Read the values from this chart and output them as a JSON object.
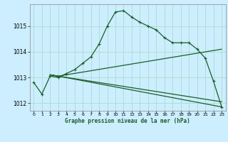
{
  "title": "Graphe pression niveau de la mer (hPa)",
  "background_color": "#cceeff",
  "grid_color": "#aaddcc",
  "line_color": "#1a5c2a",
  "xlim": [
    -0.5,
    23.5
  ],
  "ylim": [
    1011.7,
    1015.85
  ],
  "yticks": [
    1012,
    1013,
    1014,
    1015
  ],
  "xticks": [
    0,
    1,
    2,
    3,
    4,
    5,
    6,
    7,
    8,
    9,
    10,
    11,
    12,
    13,
    14,
    15,
    16,
    17,
    18,
    19,
    20,
    21,
    22,
    23
  ],
  "series1_x": [
    0,
    1,
    2,
    3,
    4,
    5,
    6,
    7,
    8,
    9,
    10,
    11,
    12,
    13,
    14,
    15,
    16,
    17,
    18,
    19,
    20,
    21,
    22,
    23
  ],
  "series1_y": [
    1012.8,
    1012.35,
    1013.05,
    1013.0,
    1013.15,
    1013.3,
    1013.55,
    1013.8,
    1014.3,
    1015.0,
    1015.55,
    1015.6,
    1015.35,
    1015.15,
    1015.0,
    1014.85,
    1014.55,
    1014.35,
    1014.35,
    1014.35,
    1014.1,
    1013.75,
    1012.85,
    1011.85
  ],
  "series2_x": [
    2,
    3,
    23
  ],
  "series2_y": [
    1013.1,
    1013.05,
    1011.85
  ],
  "series3_x": [
    2,
    3,
    23
  ],
  "series3_y": [
    1013.1,
    1013.05,
    1014.1
  ],
  "series4_x": [
    2,
    3,
    23
  ],
  "series4_y": [
    1013.1,
    1013.05,
    1012.05
  ]
}
